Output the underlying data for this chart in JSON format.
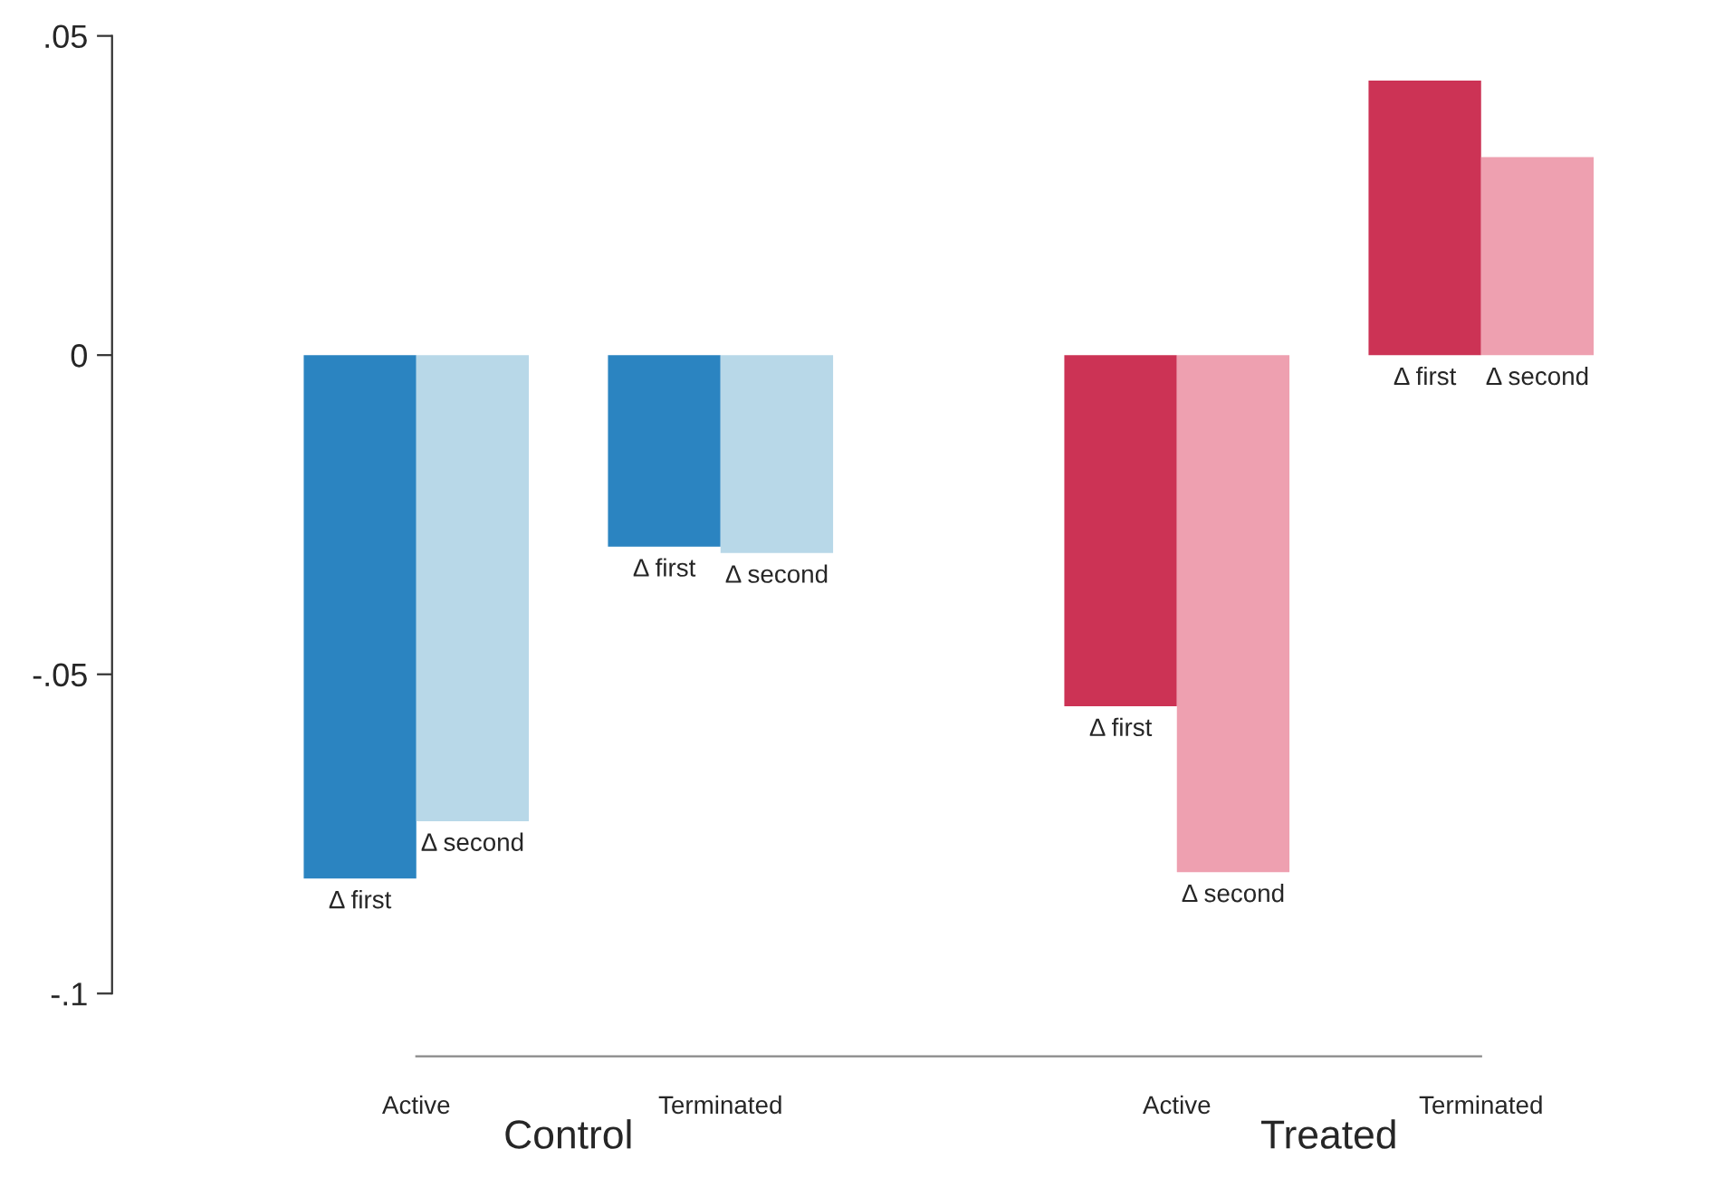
{
  "chart_data": {
    "type": "bar",
    "categories": [
      "Active",
      "Terminated",
      "Active",
      "Terminated"
    ],
    "series": [
      {
        "name": "Δ first",
        "colors": [
          "#2b84c1",
          "#2b84c1",
          "#cc3355",
          "#cc3355"
        ],
        "values": [
          -0.082,
          -0.03,
          -0.055,
          0.043
        ]
      },
      {
        "name": "Δ second",
        "colors": [
          "#b8d8e8",
          "#b8d8e8",
          "#eea0b0",
          "#eea0b0"
        ],
        "values": [
          -0.073,
          -0.031,
          -0.081,
          0.031
        ]
      }
    ],
    "ylim": [
      -0.1,
      0.05
    ],
    "yticks": [
      {
        "value": 0.05,
        "label": ".05"
      },
      0,
      {
        "value": -0.05,
        "label": "-.05"
      },
      {
        "value": -0.1,
        "label": "-.1"
      }
    ],
    "annotations": [
      "Control",
      "Treated"
    ],
    "grid": false,
    "legend": false
  }
}
